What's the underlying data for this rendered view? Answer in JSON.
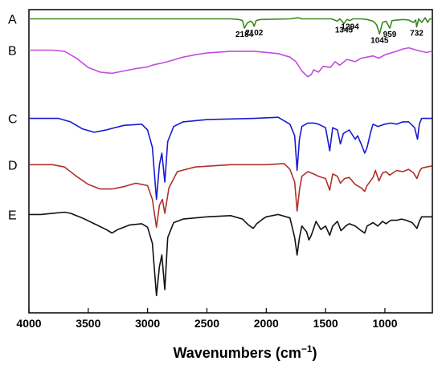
{
  "chart_data": {
    "type": "line",
    "title": "",
    "xlabel": "Wavenumbers (cm",
    "xlabel_sup": "−1",
    "xlabel_close": ")",
    "ylabel": "",
    "xlim": [
      4000,
      600
    ],
    "x_ticks": [
      4000,
      3500,
      3000,
      2500,
      2000,
      1500,
      1000
    ],
    "grid": false,
    "legend": "none",
    "series": [
      {
        "name": "A",
        "color": "#3a8a1e",
        "offset": 0.8,
        "points": [
          [
            4000,
            0
          ],
          [
            3000,
            0
          ],
          [
            2700,
            0
          ],
          [
            2300,
            0
          ],
          [
            2230,
            -0.05
          ],
          [
            2200,
            -0.15
          ],
          [
            2184,
            -0.8
          ],
          [
            2160,
            -0.35
          ],
          [
            2130,
            -0.2
          ],
          [
            2115,
            -0.3
          ],
          [
            2102,
            -0.65
          ],
          [
            2085,
            -0.15
          ],
          [
            2050,
            -0.05
          ],
          [
            1800,
            0
          ],
          [
            1730,
            0.1
          ],
          [
            1700,
            0
          ],
          [
            1600,
            0
          ],
          [
            1450,
            0
          ],
          [
            1400,
            -0.2
          ],
          [
            1380,
            0
          ],
          [
            1345,
            -0.4
          ],
          [
            1320,
            -0.05
          ],
          [
            1294,
            -0.15
          ],
          [
            1270,
            0
          ],
          [
            1200,
            0
          ],
          [
            1150,
            -0.05
          ],
          [
            1100,
            -0.2
          ],
          [
            1070,
            -0.5
          ],
          [
            1045,
            -1.3
          ],
          [
            1020,
            -0.3
          ],
          [
            990,
            -0.2
          ],
          [
            959,
            -0.8
          ],
          [
            940,
            -0.15
          ],
          [
            850,
            -0.05
          ],
          [
            800,
            -0.1
          ],
          [
            760,
            -0.3
          ],
          [
            740,
            -0.1
          ],
          [
            732,
            -0.7
          ],
          [
            715,
            0
          ],
          [
            690,
            -0.3
          ],
          [
            660,
            0.1
          ],
          [
            640,
            -0.3
          ],
          [
            620,
            0
          ],
          [
            600,
            0
          ]
        ]
      },
      {
        "name": "B",
        "color": "#c34ce0",
        "offset": -1.9,
        "points": [
          [
            4000,
            0
          ],
          [
            3800,
            0
          ],
          [
            3700,
            -0.1
          ],
          [
            3600,
            -0.7
          ],
          [
            3500,
            -1.5
          ],
          [
            3400,
            -1.9
          ],
          [
            3300,
            -2.0
          ],
          [
            3200,
            -1.8
          ],
          [
            3100,
            -1.6
          ],
          [
            3000,
            -1.45
          ],
          [
            2960,
            -1.3
          ],
          [
            2920,
            -1.2
          ],
          [
            2870,
            -1.1
          ],
          [
            2800,
            -0.9
          ],
          [
            2700,
            -0.6
          ],
          [
            2600,
            -0.4
          ],
          [
            2500,
            -0.25
          ],
          [
            2300,
            -0.1
          ],
          [
            2100,
            -0.1
          ],
          [
            1900,
            -0.3
          ],
          [
            1800,
            -0.6
          ],
          [
            1750,
            -1.0
          ],
          [
            1700,
            -1.8
          ],
          [
            1650,
            -2.3
          ],
          [
            1620,
            -2.1
          ],
          [
            1600,
            -1.7
          ],
          [
            1560,
            -1.9
          ],
          [
            1520,
            -1.4
          ],
          [
            1460,
            -1.5
          ],
          [
            1420,
            -1.0
          ],
          [
            1380,
            -1.3
          ],
          [
            1320,
            -0.8
          ],
          [
            1250,
            -1.0
          ],
          [
            1200,
            -0.7
          ],
          [
            1100,
            -0.5
          ],
          [
            1050,
            -0.7
          ],
          [
            1000,
            -0.4
          ],
          [
            900,
            -0.1
          ],
          [
            850,
            0.1
          ],
          [
            800,
            0.2
          ],
          [
            700,
            -0.1
          ],
          [
            650,
            -0.2
          ],
          [
            600,
            -0.1
          ]
        ]
      },
      {
        "name": "C",
        "color": "#1a1ad1",
        "offset": -7.8,
        "points": [
          [
            4000,
            0
          ],
          [
            3750,
            0
          ],
          [
            3650,
            -0.3
          ],
          [
            3550,
            -0.9
          ],
          [
            3450,
            -1.2
          ],
          [
            3350,
            -1.0
          ],
          [
            3200,
            -0.6
          ],
          [
            3050,
            -0.5
          ],
          [
            3000,
            -1.0
          ],
          [
            2960,
            -2.5
          ],
          [
            2925,
            -7.0
          ],
          [
            2900,
            -4.0
          ],
          [
            2880,
            -3.0
          ],
          [
            2855,
            -5.5
          ],
          [
            2830,
            -2.0
          ],
          [
            2780,
            -0.7
          ],
          [
            2700,
            -0.3
          ],
          [
            2500,
            -0.1
          ],
          [
            2100,
            0
          ],
          [
            1900,
            0.1
          ],
          [
            1800,
            -0.5
          ],
          [
            1760,
            -1.5
          ],
          [
            1740,
            -4.5
          ],
          [
            1720,
            -1.8
          ],
          [
            1700,
            -0.7
          ],
          [
            1650,
            -0.4
          ],
          [
            1600,
            -0.4
          ],
          [
            1560,
            -0.5
          ],
          [
            1500,
            -0.8
          ],
          [
            1465,
            -2.8
          ],
          [
            1440,
            -0.8
          ],
          [
            1400,
            -1.0
          ],
          [
            1375,
            -2.2
          ],
          [
            1350,
            -1.3
          ],
          [
            1300,
            -1.0
          ],
          [
            1250,
            -1.8
          ],
          [
            1230,
            -1.5
          ],
          [
            1200,
            -2.2
          ],
          [
            1170,
            -3.0
          ],
          [
            1150,
            -2.5
          ],
          [
            1120,
            -1.2
          ],
          [
            1100,
            -0.5
          ],
          [
            1060,
            -0.7
          ],
          [
            1000,
            -0.5
          ],
          [
            950,
            -0.4
          ],
          [
            900,
            -0.5
          ],
          [
            850,
            -0.3
          ],
          [
            800,
            -0.3
          ],
          [
            750,
            -0.8
          ],
          [
            725,
            -1.8
          ],
          [
            710,
            -0.5
          ],
          [
            690,
            0
          ],
          [
            650,
            0
          ],
          [
            600,
            0
          ]
        ]
      },
      {
        "name": "D",
        "color": "#b0302a",
        "offset": -11.8,
        "points": [
          [
            4000,
            0
          ],
          [
            3800,
            0
          ],
          [
            3700,
            -0.2
          ],
          [
            3600,
            -1.0
          ],
          [
            3500,
            -1.7
          ],
          [
            3400,
            -2.1
          ],
          [
            3300,
            -2.1
          ],
          [
            3200,
            -1.9
          ],
          [
            3100,
            -1.6
          ],
          [
            3000,
            -1.8
          ],
          [
            2960,
            -3.0
          ],
          [
            2925,
            -5.4
          ],
          [
            2900,
            -3.5
          ],
          [
            2875,
            -3.0
          ],
          [
            2855,
            -4.2
          ],
          [
            2820,
            -2.0
          ],
          [
            2750,
            -0.6
          ],
          [
            2600,
            -0.2
          ],
          [
            2300,
            0
          ],
          [
            2000,
            0
          ],
          [
            1850,
            0.1
          ],
          [
            1800,
            -0.4
          ],
          [
            1760,
            -1.5
          ],
          [
            1740,
            -4.0
          ],
          [
            1720,
            -2.2
          ],
          [
            1700,
            -1.0
          ],
          [
            1650,
            -0.6
          ],
          [
            1600,
            -0.8
          ],
          [
            1560,
            -1.0
          ],
          [
            1500,
            -1.2
          ],
          [
            1465,
            -2.2
          ],
          [
            1440,
            -0.8
          ],
          [
            1400,
            -1.0
          ],
          [
            1375,
            -1.6
          ],
          [
            1340,
            -1.2
          ],
          [
            1300,
            -1.1
          ],
          [
            1250,
            -1.7
          ],
          [
            1200,
            -2.0
          ],
          [
            1170,
            -2.3
          ],
          [
            1150,
            -1.8
          ],
          [
            1100,
            -1.1
          ],
          [
            1080,
            -0.5
          ],
          [
            1050,
            -1.4
          ],
          [
            1020,
            -0.7
          ],
          [
            990,
            -0.6
          ],
          [
            960,
            -0.9
          ],
          [
            900,
            -0.5
          ],
          [
            850,
            -0.6
          ],
          [
            800,
            -0.4
          ],
          [
            760,
            -0.7
          ],
          [
            730,
            -1.2
          ],
          [
            710,
            -0.6
          ],
          [
            690,
            -0.3
          ],
          [
            650,
            -0.2
          ],
          [
            600,
            -0.1
          ]
        ]
      },
      {
        "name": "E",
        "color": "#111111",
        "offset": -16.1,
        "points": [
          [
            4000,
            0
          ],
          [
            3900,
            0
          ],
          [
            3800,
            0.1
          ],
          [
            3700,
            0.2
          ],
          [
            3650,
            0.1
          ],
          [
            3550,
            -0.3
          ],
          [
            3450,
            -0.8
          ],
          [
            3350,
            -1.3
          ],
          [
            3300,
            -1.6
          ],
          [
            3250,
            -1.3
          ],
          [
            3150,
            -0.9
          ],
          [
            3050,
            -0.8
          ],
          [
            3000,
            -1.1
          ],
          [
            2960,
            -2.5
          ],
          [
            2925,
            -7.0
          ],
          [
            2900,
            -4.5
          ],
          [
            2880,
            -3.5
          ],
          [
            2855,
            -6.5
          ],
          [
            2830,
            -2.0
          ],
          [
            2780,
            -0.7
          ],
          [
            2700,
            -0.4
          ],
          [
            2600,
            -0.3
          ],
          [
            2500,
            -0.2
          ],
          [
            2300,
            -0.1
          ],
          [
            2200,
            -0.4
          ],
          [
            2150,
            -0.9
          ],
          [
            2110,
            -1.2
          ],
          [
            2080,
            -0.8
          ],
          [
            2030,
            -0.4
          ],
          [
            2000,
            -0.2
          ],
          [
            1900,
            0
          ],
          [
            1800,
            -0.3
          ],
          [
            1760,
            -2.0
          ],
          [
            1740,
            -3.5
          ],
          [
            1720,
            -2.0
          ],
          [
            1700,
            -1.0
          ],
          [
            1660,
            -1.5
          ],
          [
            1640,
            -2.2
          ],
          [
            1620,
            -1.8
          ],
          [
            1580,
            -0.6
          ],
          [
            1540,
            -1.3
          ],
          [
            1500,
            -1.0
          ],
          [
            1465,
            -1.8
          ],
          [
            1440,
            -1.0
          ],
          [
            1400,
            -0.6
          ],
          [
            1370,
            -1.4
          ],
          [
            1330,
            -1.0
          ],
          [
            1300,
            -0.8
          ],
          [
            1250,
            -1.0
          ],
          [
            1200,
            -1.4
          ],
          [
            1170,
            -1.6
          ],
          [
            1150,
            -1.0
          ],
          [
            1100,
            -0.7
          ],
          [
            1060,
            -1.0
          ],
          [
            1020,
            -0.6
          ],
          [
            990,
            -0.8
          ],
          [
            950,
            -0.5
          ],
          [
            900,
            -0.5
          ],
          [
            860,
            -0.4
          ],
          [
            820,
            -0.5
          ],
          [
            770,
            -0.7
          ],
          [
            730,
            -1.2
          ],
          [
            710,
            -0.6
          ],
          [
            690,
            -0.2
          ],
          [
            650,
            -0.2
          ],
          [
            600,
            -0.2
          ]
        ]
      }
    ],
    "annotations": [
      {
        "text": "2184",
        "x": 2184,
        "series": "A"
      },
      {
        "text": "2102",
        "x": 2102,
        "series": "A"
      },
      {
        "text": "1345",
        "x": 1345,
        "series": "A"
      },
      {
        "text": "1294",
        "x": 1294,
        "series": "A"
      },
      {
        "text": "1045",
        "x": 1045,
        "series": "A"
      },
      {
        "text": "959",
        "x": 959,
        "series": "A"
      },
      {
        "text": "732",
        "x": 732,
        "series": "A"
      }
    ]
  }
}
